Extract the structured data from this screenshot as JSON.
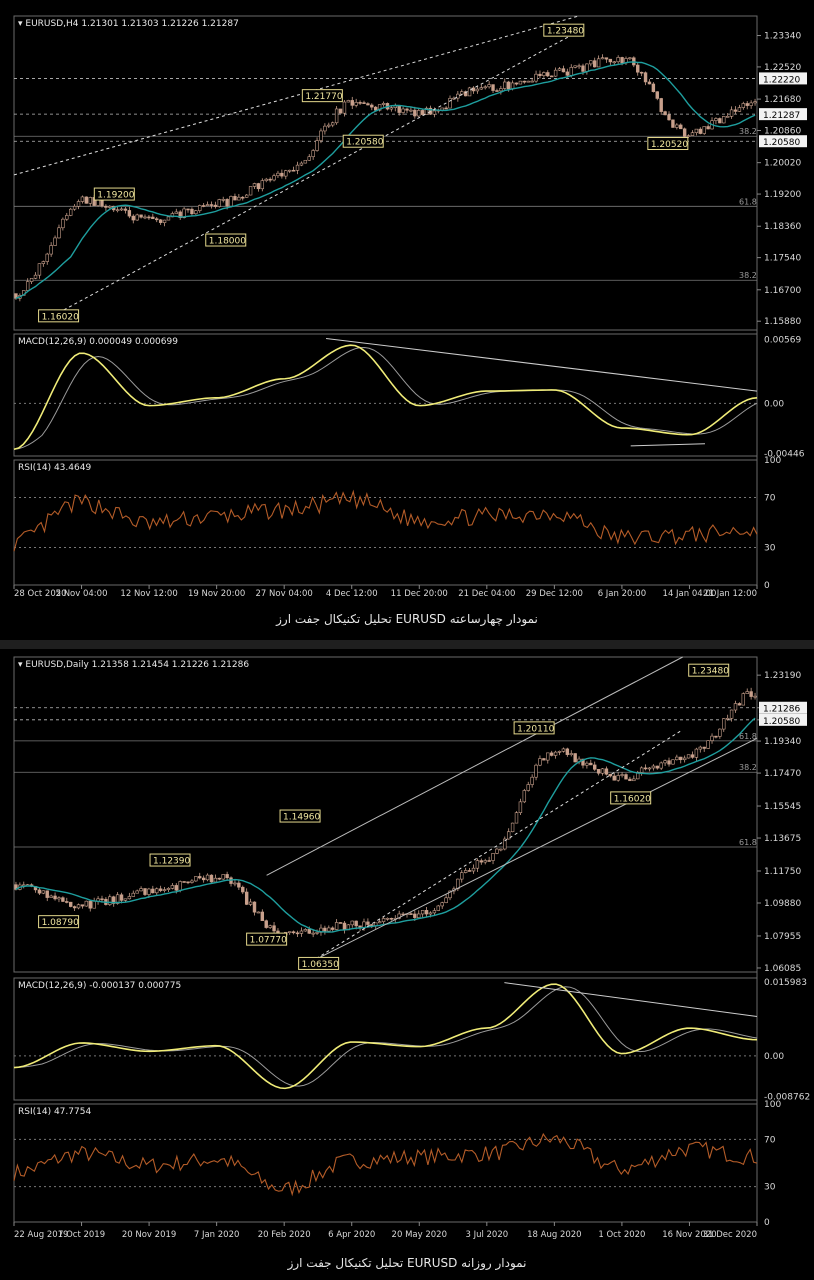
{
  "colors": {
    "price": "#c8a08c",
    "ma": "#1e9e9e",
    "macd": "#f0ec78",
    "signal": "#9a9a9a",
    "rsi": "#b45c28",
    "grid": "#555555",
    "label_bg": "#000000",
    "label_border": "#e4d88c",
    "label_text": "#f0e6a0",
    "axis_text": "#d8d8d8"
  },
  "charts": [
    {
      "id": "h4",
      "header": "EURUSD,H4  1.21301 1.21303 1.21226 1.21287",
      "ylim": [
        1.1565,
        1.2385
      ],
      "y_ticks": [
        "1.23340",
        "1.22520",
        "1.21680",
        "1.20860",
        "1.20020",
        "1.19200",
        "1.18360",
        "1.17540",
        "1.16700",
        "1.15880"
      ],
      "y_tick_values": [
        1.2334,
        1.2252,
        1.2168,
        1.2086,
        1.2002,
        1.192,
        1.1836,
        1.1754,
        1.167,
        1.1588
      ],
      "price_boxes": [
        "1.22220",
        "1.21287",
        "1.20580"
      ],
      "price_box_values": [
        1.2222,
        1.21287,
        1.2058
      ],
      "fib_labels": [
        "38.2",
        "61.8",
        "38.2"
      ],
      "fib_values": [
        1.2071,
        1.1888,
        1.1695
      ],
      "points": [
        {
          "label": "1.16020",
          "x": 0.06,
          "y": 1.1602
        },
        {
          "label": "1.19200",
          "x": 0.135,
          "y": 1.192
        },
        {
          "label": "1.18000",
          "x": 0.285,
          "y": 1.18
        },
        {
          "label": "1.21770",
          "x": 0.415,
          "y": 1.2177
        },
        {
          "label": "1.20580",
          "x": 0.47,
          "y": 1.2058
        },
        {
          "label": "1.23480",
          "x": 0.74,
          "y": 1.2348
        },
        {
          "label": "1.20520",
          "x": 0.88,
          "y": 1.2052
        }
      ],
      "x_labels": [
        "28 Oct 2020",
        "5 Nov 04:00",
        "12 Nov 12:00",
        "19 Nov 20:00",
        "27 Nov 04:00",
        "4 Dec 12:00",
        "11 Dec 20:00",
        "21 Dec 04:00",
        "29 Dec 12:00",
        "6 Jan 20:00",
        "14 Jan 04:00",
        "21 Jan 12:00"
      ],
      "macd_header": "MACD(12,26,9) 0.000049 0.000699",
      "macd_ticks": [
        "0.00569",
        "0.00",
        "-0.00446"
      ],
      "macd_tick_values": [
        0.00569,
        0,
        -0.00446
      ],
      "macd_range": [
        -0.0047,
        0.0062
      ],
      "rsi_header": "RSI(14) 43.4649",
      "rsi_ticks": [
        "100",
        "70",
        "30",
        "0"
      ],
      "caption": "تحلیل تکنیکال جفت ارز EURUSD نمودار چهارساعته"
    },
    {
      "id": "daily",
      "header": "EURUSD,Daily  1.21358 1.21454 1.21226 1.21286",
      "ylim": [
        1.0585,
        1.2425
      ],
      "y_ticks": [
        "1.23190",
        "1.21286",
        "1.20580",
        "1.19340",
        "1.17470",
        "1.15545",
        "1.13675",
        "1.11750",
        "1.09880",
        "1.07955",
        "1.06085"
      ],
      "y_tick_values": [
        1.2319,
        1.21286,
        1.2058,
        1.1934,
        1.1747,
        1.15545,
        1.13675,
        1.1175,
        1.0988,
        1.07955,
        1.06085
      ],
      "price_boxes": [
        "1.21286",
        "1.20580"
      ],
      "price_box_values": [
        1.21286,
        1.2058
      ],
      "fib_labels": [
        "61.8",
        "38.2",
        "61.8"
      ],
      "fib_values": [
        1.1935,
        1.1752,
        1.1315
      ],
      "points": [
        {
          "label": "1.08790",
          "x": 0.06,
          "y": 1.0879
        },
        {
          "label": "1.12390",
          "x": 0.21,
          "y": 1.1239
        },
        {
          "label": "1.07770",
          "x": 0.34,
          "y": 1.0777
        },
        {
          "label": "1.14960",
          "x": 0.385,
          "y": 1.1496
        },
        {
          "label": "1.06350",
          "x": 0.41,
          "y": 1.0635
        },
        {
          "label": "1.20110",
          "x": 0.7,
          "y": 1.2011
        },
        {
          "label": "1.16020",
          "x": 0.83,
          "y": 1.1602
        },
        {
          "label": "1.23480",
          "x": 0.935,
          "y": 1.2348
        }
      ],
      "x_labels": [
        "22 Aug 2019",
        "7 Oct 2019",
        "20 Nov 2019",
        "7 Jan 2020",
        "20 Feb 2020",
        "6 Apr 2020",
        "20 May 2020",
        "3 Jul 2020",
        "18 Aug 2020",
        "1 Oct 2020",
        "16 Nov 2020",
        "31 Dec 2020"
      ],
      "macd_header": "MACD(12,26,9) -0.000137 0.000775",
      "macd_ticks": [
        "0.015983",
        "0.00",
        "-0.008762"
      ],
      "macd_tick_values": [
        0.015983,
        0,
        -0.008762
      ],
      "macd_range": [
        -0.0095,
        0.0168
      ],
      "rsi_header": "RSI(14) 47.7754",
      "rsi_ticks": [
        "100",
        "70",
        "30",
        "0"
      ],
      "caption": "تحلیل تکنیکال جفت ارز EURUSD نمودار روزانه"
    }
  ],
  "chart_data": [
    {
      "type": "line",
      "title": "EURUSD,H4",
      "ohlc_last": [
        1.21301,
        1.21303,
        1.21226,
        1.21287
      ],
      "x": [
        "28 Oct 2020",
        "5 Nov 04:00",
        "12 Nov 12:00",
        "19 Nov 20:00",
        "27 Nov 04:00",
        "4 Dec 12:00",
        "11 Dec 20:00",
        "21 Dec 04:00",
        "29 Dec 12:00",
        "6 Jan 20:00",
        "14 Jan 04:00",
        "21 Jan 12:00"
      ],
      "series": [
        {
          "name": "EURUSD,H4",
          "values": [
            1.166,
            1.1905,
            1.185,
            1.1895,
            1.197,
            1.2155,
            1.2135,
            1.2195,
            1.2235,
            1.2275,
            1.2075,
            1.2165
          ]
        },
        {
          "name": "MACD(12,26,9)",
          "values": [
            -0.0041,
            0.0045,
            -0.0002,
            0.0005,
            0.0022,
            0.0052,
            -0.0002,
            0.0011,
            0.0012,
            -0.0022,
            -0.0028,
            0.0005
          ]
        },
        {
          "name": "RSI(14)",
          "values": [
            34,
            66,
            49,
            55,
            60,
            68,
            52,
            55,
            58,
            38,
            40,
            44
          ]
        }
      ],
      "key_levels": [
        1.1602,
        1.192,
        1.18,
        1.2177,
        1.2058,
        1.2348,
        1.2052
      ],
      "ylim": [
        1.1565,
        1.2385
      ]
    },
    {
      "type": "line",
      "title": "EURUSD,Daily",
      "ohlc_last": [
        1.21358,
        1.21454,
        1.21226,
        1.21286
      ],
      "x": [
        "22 Aug 2019",
        "7 Oct 2019",
        "20 Nov 2019",
        "7 Jan 2020",
        "20 Feb 2020",
        "6 Apr 2020",
        "20 May 2020",
        "3 Jul 2020",
        "18 Aug 2020",
        "1 Oct 2020",
        "16 Nov 2020",
        "31 Dec 2020"
      ],
      "series": [
        {
          "name": "EURUSD,Daily",
          "values": [
            1.1095,
            1.0979,
            1.105,
            1.114,
            1.0795,
            1.086,
            1.093,
            1.124,
            1.1875,
            1.172,
            1.185,
            1.2215
          ]
        },
        {
          "name": "MACD(12,26,9)",
          "values": [
            -0.0025,
            0.0028,
            0.001,
            0.0022,
            -0.007,
            0.003,
            0.002,
            0.006,
            0.0155,
            0.0005,
            0.006,
            0.0035
          ]
        },
        {
          "name": "RSI(14)",
          "values": [
            42,
            58,
            48,
            53,
            28,
            52,
            55,
            58,
            70,
            45,
            62,
            55
          ]
        }
      ],
      "key_levels": [
        1.0879,
        1.1239,
        1.0777,
        1.1496,
        1.0635,
        1.2011,
        1.1602,
        1.2348
      ],
      "ylim": [
        1.0585,
        1.2425
      ]
    }
  ]
}
